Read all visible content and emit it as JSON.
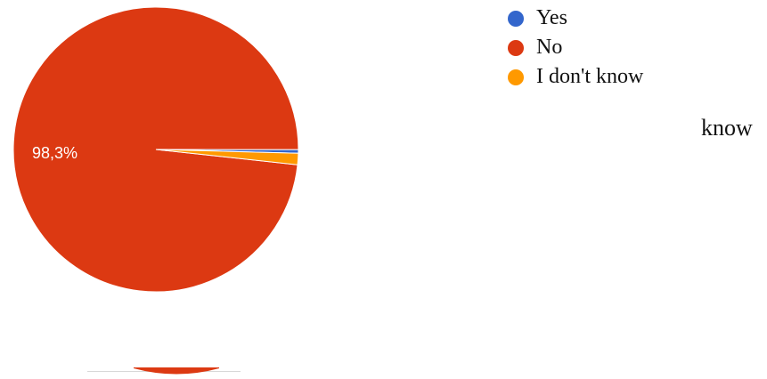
{
  "chart_data": {
    "type": "pie",
    "title": "",
    "series": [
      {
        "slices": [
          {
            "label": "Yes",
            "value": 0.4,
            "color": "#3366cc"
          },
          {
            "label": "No",
            "value": 98.3,
            "color": "#dc3912"
          },
          {
            "label": "I don't know",
            "value": 1.3,
            "color": "#ff9900"
          }
        ]
      }
    ],
    "data_labels": [
      "98,3%"
    ],
    "legend_position": "top-right"
  },
  "side_text": "know"
}
